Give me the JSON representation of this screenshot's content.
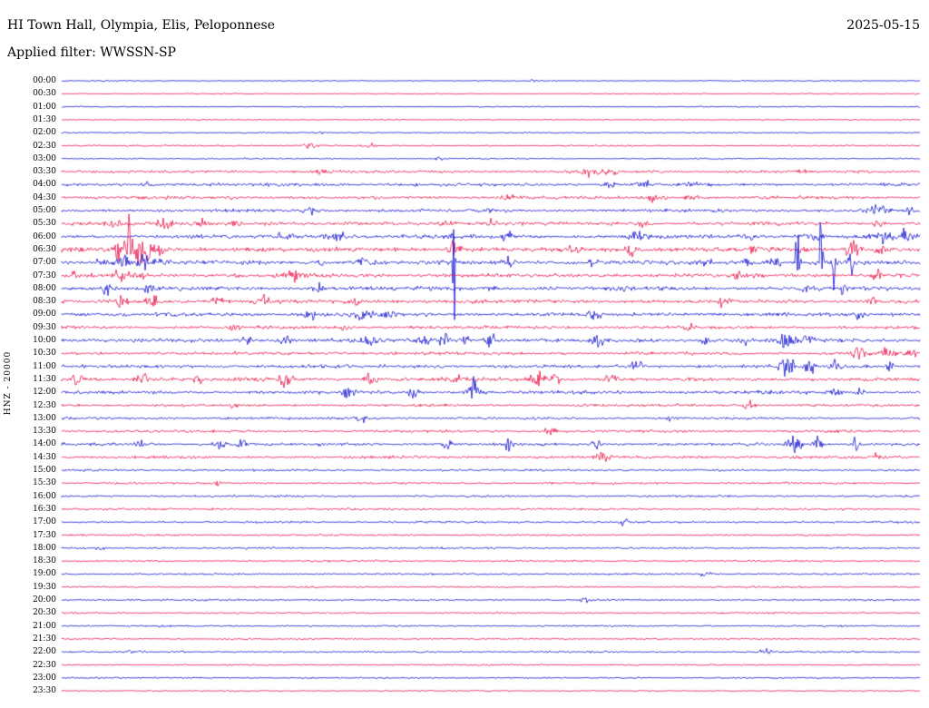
{
  "header": {
    "title": "HI Town Hall, Olympia, Elis, Peloponnese",
    "date": "2025-05-15",
    "filter_label": "Applied filter: WWSSN-SP"
  },
  "y_axis_label": "HNZ - 20000",
  "chart_data": {
    "type": "line",
    "subtype": "helicorder",
    "title": "HI Town Hall, Olympia, Elis, Peloponnese",
    "date": "2025-05-15",
    "filter": "WWSSN-SP",
    "channel": "HNZ",
    "scale": 20000,
    "row_duration_minutes": 30,
    "xlabel": "",
    "ylabel": "HNZ - 20000",
    "legend": "none",
    "grid": false,
    "colors": {
      "blue": "#0000cd",
      "red": "#e8003c"
    },
    "rows": [
      {
        "t": "00:00",
        "color": "blue",
        "noise": 0.4,
        "events": [
          [
            0.55,
            1.2,
            3
          ]
        ]
      },
      {
        "t": "00:30",
        "color": "red",
        "noise": 0.4,
        "events": []
      },
      {
        "t": "01:00",
        "color": "blue",
        "noise": 0.4,
        "events": []
      },
      {
        "t": "01:30",
        "color": "red",
        "noise": 0.4,
        "events": []
      },
      {
        "t": "02:00",
        "color": "blue",
        "noise": 0.45,
        "events": [
          [
            0.3,
            0.8,
            4
          ]
        ]
      },
      {
        "t": "02:30",
        "color": "red",
        "noise": 0.55,
        "events": [
          [
            0.29,
            2.2,
            6
          ],
          [
            0.36,
            1.2,
            4
          ]
        ]
      },
      {
        "t": "03:00",
        "color": "blue",
        "noise": 0.5,
        "events": [
          [
            0.44,
            1.2,
            4
          ]
        ]
      },
      {
        "t": "03:30",
        "color": "red",
        "noise": 0.9,
        "events": [
          [
            0.3,
            1.5,
            5
          ],
          [
            0.615,
            3,
            8
          ],
          [
            0.64,
            2,
            5
          ],
          [
            0.86,
            1.5,
            4
          ]
        ]
      },
      {
        "t": "04:00",
        "color": "blue",
        "noise": 1.0,
        "events": [
          [
            0.1,
            2,
            5
          ],
          [
            0.3,
            1.5,
            4
          ],
          [
            0.64,
            2,
            5
          ],
          [
            0.68,
            2.5,
            6
          ],
          [
            0.73,
            2.5,
            6
          ]
        ]
      },
      {
        "t": "04:30",
        "color": "red",
        "noise": 1.0,
        "events": [
          [
            0.2,
            1.5,
            4
          ],
          [
            0.52,
            3,
            5
          ],
          [
            0.69,
            3,
            7
          ],
          [
            0.735,
            2.5,
            5
          ]
        ]
      },
      {
        "t": "05:00",
        "color": "blue",
        "noise": 1.0,
        "events": [
          [
            0.29,
            3,
            6
          ],
          [
            0.5,
            2,
            4
          ],
          [
            0.95,
            4,
            8
          ],
          [
            0.99,
            3,
            4
          ]
        ]
      },
      {
        "t": "05:30",
        "color": "red",
        "noise": 1.15,
        "events": [
          [
            0.06,
            3,
            5
          ],
          [
            0.12,
            3.5,
            6
          ],
          [
            0.165,
            3,
            5
          ],
          [
            0.2,
            3,
            5
          ],
          [
            0.24,
            2.5,
            5
          ],
          [
            0.45,
            3,
            5
          ],
          [
            0.5,
            2.5,
            4
          ],
          [
            0.675,
            3,
            5
          ],
          [
            0.95,
            3,
            5
          ]
        ]
      },
      {
        "t": "06:00",
        "color": "blue",
        "noise": 1.2,
        "events": [
          [
            0.26,
            3,
            6
          ],
          [
            0.32,
            3.5,
            7
          ],
          [
            0.45,
            3,
            6
          ],
          [
            0.52,
            3,
            6
          ],
          [
            0.67,
            3,
            6
          ],
          [
            0.8,
            3,
            6
          ],
          [
            0.875,
            3.5,
            7
          ],
          [
            0.955,
            5,
            6
          ],
          [
            0.985,
            6,
            5
          ]
        ]
      },
      {
        "t": "06:30",
        "color": "red",
        "noise": 1.4,
        "events": [
          [
            0.066,
            14,
            2.5
          ],
          [
            0.078,
            26,
            3
          ],
          [
            0.09,
            20,
            3
          ],
          [
            0.102,
            12,
            3
          ],
          [
            0.115,
            8,
            3
          ],
          [
            0.457,
            9,
            4
          ],
          [
            0.594,
            5,
            4
          ],
          [
            0.663,
            6,
            4
          ],
          [
            0.805,
            4,
            4
          ],
          [
            0.864,
            5,
            3
          ],
          [
            0.922,
            8,
            5
          ],
          [
            0.955,
            4,
            4
          ]
        ]
      },
      {
        "t": "07:00",
        "color": "blue",
        "noise": 1.4,
        "events": [
          [
            0.045,
            5,
            5
          ],
          [
            0.07,
            6,
            5
          ],
          [
            0.095,
            5,
            4
          ],
          [
            0.115,
            4,
            4
          ],
          [
            0.3,
            3,
            4
          ],
          [
            0.35,
            3,
            4
          ],
          [
            0.457,
            55,
            1.3
          ],
          [
            0.52,
            4,
            4
          ],
          [
            0.62,
            3,
            4
          ],
          [
            0.75,
            3,
            4
          ],
          [
            0.8,
            4,
            4
          ],
          [
            0.83,
            5,
            4
          ],
          [
            0.858,
            90,
            1.3
          ],
          [
            0.885,
            45,
            1.3
          ],
          [
            0.9,
            25,
            1.5
          ],
          [
            0.92,
            8,
            3
          ]
        ]
      },
      {
        "t": "07:30",
        "color": "red",
        "noise": 1.3,
        "events": [
          [
            0.013,
            4,
            3
          ],
          [
            0.07,
            5,
            5
          ],
          [
            0.09,
            4,
            4
          ],
          [
            0.27,
            4,
            4
          ],
          [
            0.79,
            4,
            4
          ],
          [
            0.95,
            3,
            4
          ]
        ]
      },
      {
        "t": "08:00",
        "color": "blue",
        "noise": 1.25,
        "events": [
          [
            0.05,
            4,
            5
          ],
          [
            0.1,
            3,
            4
          ],
          [
            0.3,
            3,
            4
          ],
          [
            0.5,
            3,
            4
          ],
          [
            0.66,
            3,
            4
          ],
          [
            0.87,
            4,
            4
          ],
          [
            0.91,
            3,
            3
          ]
        ]
      },
      {
        "t": "08:30",
        "color": "red",
        "noise": 1.2,
        "events": [
          [
            0.07,
            4,
            5
          ],
          [
            0.105,
            5,
            5
          ],
          [
            0.18,
            4,
            4
          ],
          [
            0.235,
            4,
            4
          ],
          [
            0.34,
            4,
            5
          ],
          [
            0.77,
            4,
            4
          ],
          [
            0.945,
            3,
            3
          ]
        ]
      },
      {
        "t": "09:00",
        "color": "blue",
        "noise": 1.2,
        "events": [
          [
            0.29,
            4,
            5
          ],
          [
            0.35,
            5,
            6
          ],
          [
            0.38,
            4,
            5
          ],
          [
            0.62,
            4,
            5
          ],
          [
            0.93,
            3,
            4
          ]
        ]
      },
      {
        "t": "09:30",
        "color": "red",
        "noise": 1.0,
        "events": [
          [
            0.2,
            2.5,
            4
          ],
          [
            0.33,
            2.5,
            4
          ],
          [
            0.73,
            4,
            4
          ]
        ]
      },
      {
        "t": "10:00",
        "color": "blue",
        "noise": 1.25,
        "events": [
          [
            0.215,
            4,
            5
          ],
          [
            0.26,
            4,
            4
          ],
          [
            0.36,
            4,
            5
          ],
          [
            0.42,
            5,
            5
          ],
          [
            0.445,
            6,
            4
          ],
          [
            0.47,
            5,
            4
          ],
          [
            0.5,
            4,
            4
          ],
          [
            0.625,
            5,
            5
          ],
          [
            0.75,
            3,
            4
          ],
          [
            0.795,
            4,
            4
          ],
          [
            0.845,
            6,
            6
          ],
          [
            0.87,
            4,
            4
          ]
        ]
      },
      {
        "t": "10:30",
        "color": "red",
        "noise": 1.0,
        "events": [
          [
            0.93,
            4,
            6
          ],
          [
            0.96,
            4,
            6
          ],
          [
            0.99,
            3,
            4
          ]
        ]
      },
      {
        "t": "11:00",
        "color": "blue",
        "noise": 1.1,
        "events": [
          [
            0.67,
            5,
            4
          ],
          [
            0.845,
            9,
            5
          ],
          [
            0.87,
            7,
            4
          ],
          [
            0.9,
            5,
            4
          ],
          [
            0.965,
            4,
            3
          ]
        ]
      },
      {
        "t": "11:30",
        "color": "red",
        "noise": 1.2,
        "events": [
          [
            0.02,
            5,
            4
          ],
          [
            0.095,
            5,
            5
          ],
          [
            0.16,
            3,
            4
          ],
          [
            0.26,
            6,
            6
          ],
          [
            0.36,
            4,
            5
          ],
          [
            0.46,
            4,
            4
          ],
          [
            0.555,
            7,
            6
          ],
          [
            0.575,
            5,
            4
          ],
          [
            0.64,
            3,
            4
          ]
        ]
      },
      {
        "t": "12:00",
        "color": "blue",
        "noise": 1.1,
        "events": [
          [
            0.335,
            4,
            4
          ],
          [
            0.41,
            4,
            4
          ],
          [
            0.48,
            8,
            5
          ],
          [
            0.9,
            5,
            4
          ],
          [
            0.93,
            3,
            3
          ]
        ]
      },
      {
        "t": "12:30",
        "color": "red",
        "noise": 0.9,
        "events": [
          [
            0.2,
            3,
            4
          ],
          [
            0.8,
            4,
            4
          ]
        ]
      },
      {
        "t": "13:00",
        "color": "blue",
        "noise": 0.85,
        "events": [
          [
            0.35,
            4,
            4
          ],
          [
            0.71,
            2.5,
            4
          ]
        ]
      },
      {
        "t": "13:30",
        "color": "red",
        "noise": 0.85,
        "events": [
          [
            0.57,
            4,
            5
          ]
        ]
      },
      {
        "t": "14:00",
        "color": "blue",
        "noise": 1.0,
        "events": [
          [
            0.09,
            3,
            4
          ],
          [
            0.185,
            5,
            5
          ],
          [
            0.21,
            4,
            4
          ],
          [
            0.45,
            4,
            4
          ],
          [
            0.52,
            4,
            4
          ],
          [
            0.625,
            4,
            4
          ],
          [
            0.855,
            8,
            6
          ],
          [
            0.88,
            5,
            4
          ],
          [
            0.925,
            14,
            2
          ]
        ]
      },
      {
        "t": "14:30",
        "color": "red",
        "noise": 0.9,
        "events": [
          [
            0.63,
            5,
            5
          ],
          [
            0.95,
            3,
            3
          ]
        ]
      },
      {
        "t": "15:00",
        "color": "blue",
        "noise": 0.7,
        "events": []
      },
      {
        "t": "15:30",
        "color": "red",
        "noise": 0.7,
        "events": [
          [
            0.18,
            2,
            4
          ]
        ]
      },
      {
        "t": "16:00",
        "color": "blue",
        "noise": 0.7,
        "events": []
      },
      {
        "t": "16:30",
        "color": "red",
        "noise": 0.7,
        "events": []
      },
      {
        "t": "17:00",
        "color": "blue",
        "noise": 0.7,
        "events": [
          [
            0.655,
            2.5,
            4
          ]
        ]
      },
      {
        "t": "17:30",
        "color": "red",
        "noise": 0.65,
        "events": []
      },
      {
        "t": "18:00",
        "color": "blue",
        "noise": 0.65,
        "events": [
          [
            0.045,
            2,
            3
          ]
        ]
      },
      {
        "t": "18:30",
        "color": "red",
        "noise": 0.6,
        "events": []
      },
      {
        "t": "19:00",
        "color": "blue",
        "noise": 0.6,
        "events": [
          [
            0.75,
            2,
            4
          ]
        ]
      },
      {
        "t": "19:30",
        "color": "red",
        "noise": 0.6,
        "events": []
      },
      {
        "t": "20:00",
        "color": "blue",
        "noise": 0.6,
        "events": [
          [
            0.61,
            2,
            4
          ]
        ]
      },
      {
        "t": "20:30",
        "color": "red",
        "noise": 0.6,
        "events": []
      },
      {
        "t": "21:00",
        "color": "blue",
        "noise": 0.6,
        "events": []
      },
      {
        "t": "21:30",
        "color": "red",
        "noise": 0.55,
        "events": []
      },
      {
        "t": "22:00",
        "color": "blue",
        "noise": 0.6,
        "events": [
          [
            0.085,
            2,
            4
          ],
          [
            0.82,
            2.5,
            4
          ]
        ]
      },
      {
        "t": "22:30",
        "color": "red",
        "noise": 0.5,
        "events": []
      },
      {
        "t": "23:00",
        "color": "blue",
        "noise": 0.5,
        "events": []
      },
      {
        "t": "23:30",
        "color": "red",
        "noise": 0.5,
        "events": []
      }
    ]
  }
}
